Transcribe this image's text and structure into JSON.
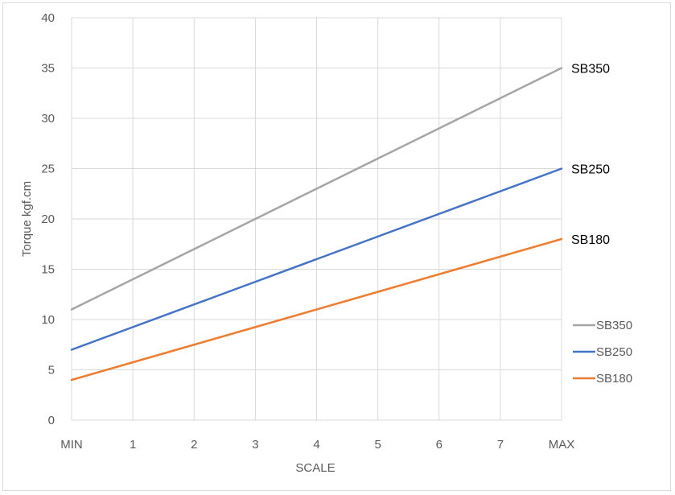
{
  "chart_data": {
    "type": "line",
    "title": "",
    "xlabel": "SCALE",
    "ylabel": "Torque kgf.cm",
    "categories": [
      "MIN",
      "1",
      "2",
      "3",
      "4",
      "5",
      "6",
      "7",
      "MAX"
    ],
    "ylim": [
      0,
      40
    ],
    "yticks": [
      0,
      5,
      10,
      15,
      20,
      25,
      30,
      35,
      40
    ],
    "grid": true,
    "legend_position": "right",
    "series": [
      {
        "name": "SB350",
        "color": "#a5a5a5",
        "values": [
          11,
          14,
          17,
          20,
          23,
          26,
          29,
          32,
          35
        ]
      },
      {
        "name": "SB250",
        "color": "#4472c4",
        "values": [
          7,
          9.25,
          11.5,
          13.75,
          16,
          18.25,
          20.5,
          22.75,
          25
        ]
      },
      {
        "name": "SB180",
        "color": "#ed7d31",
        "values": [
          4,
          5.75,
          7.5,
          9.25,
          11,
          12.75,
          14.5,
          16.25,
          18
        ]
      }
    ],
    "end_labels": [
      "SB350",
      "SB250",
      "SB180"
    ]
  }
}
